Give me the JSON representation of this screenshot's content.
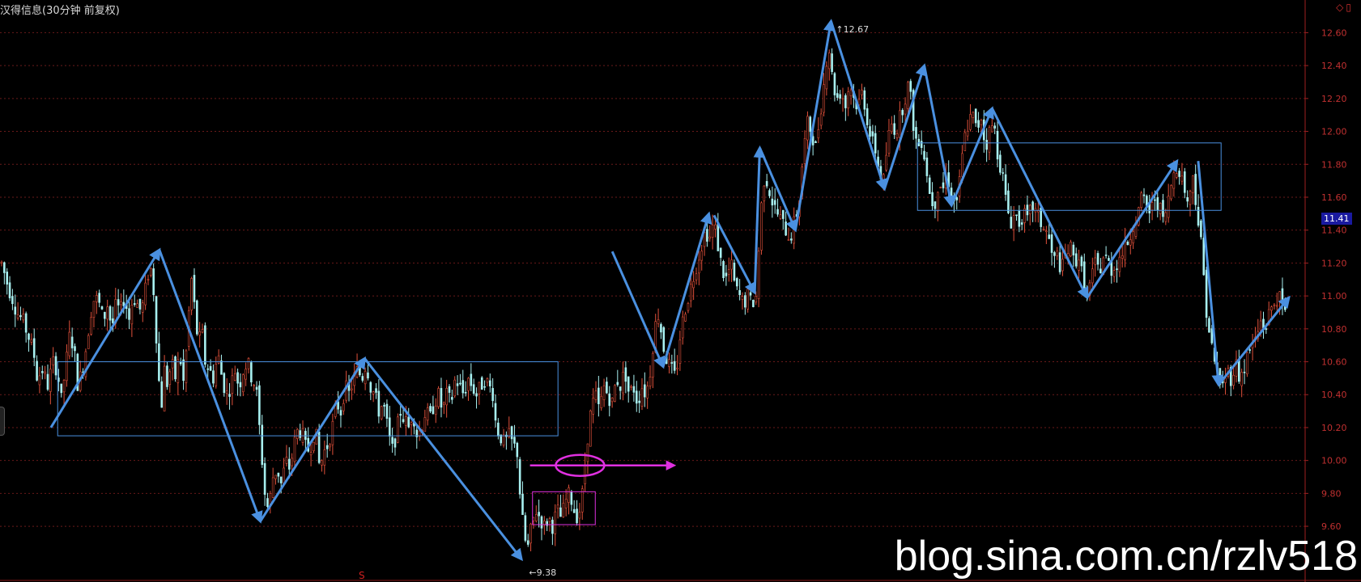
{
  "window": {
    "title": "汉得信息(30分钟 前复权)"
  },
  "price_tag": {
    "value": "11.41"
  },
  "watermark": "blog.sina.com.cn/rzlv518",
  "colors": {
    "background": "#000000",
    "grid": "#6a1a1a",
    "axis_text": "#c03030",
    "candle_up": "#e0503a",
    "candle_down": "#a8f0f0",
    "annotation_blue": "#4a90e0",
    "annotation_magenta": "#e030e0"
  },
  "icons": [
    "diamond-icon",
    "window-icon"
  ],
  "chart_data": {
    "type": "candlestick",
    "title": "汉得信息(30分钟 前复权)",
    "ylim": [
      9.34,
      12.72
    ],
    "yticks": [
      "12.60",
      "12.40",
      "12.20",
      "12.00",
      "11.80",
      "11.60",
      "11.40",
      "11.20",
      "11.00",
      "10.80",
      "10.60",
      "10.40",
      "10.20",
      "10.00",
      "9.80",
      "9.60"
    ],
    "max_label": "12.67",
    "min_label": "9.38",
    "current_price": 11.41,
    "close_path": [
      [
        0,
        11.2
      ],
      [
        8,
        11.05
      ],
      [
        12,
        11.0
      ],
      [
        18,
        10.9
      ],
      [
        25,
        10.85
      ],
      [
        32,
        10.75
      ],
      [
        38,
        10.65
      ],
      [
        42,
        10.5
      ],
      [
        48,
        10.55
      ],
      [
        55,
        10.45
      ],
      [
        60,
        10.6
      ],
      [
        66,
        10.55
      ],
      [
        70,
        10.35
      ],
      [
        75,
        10.55
      ],
      [
        80,
        10.75
      ],
      [
        85,
        10.7
      ],
      [
        90,
        10.45
      ],
      [
        95,
        10.55
      ],
      [
        100,
        10.7
      ],
      [
        105,
        10.9
      ],
      [
        110,
        11.0
      ],
      [
        115,
        10.95
      ],
      [
        120,
        10.85
      ],
      [
        125,
        10.95
      ],
      [
        130,
        10.8
      ],
      [
        135,
        10.95
      ],
      [
        140,
        10.9
      ],
      [
        145,
        11.0
      ],
      [
        150,
        10.85
      ],
      [
        155,
        11.0
      ],
      [
        160,
        10.95
      ],
      [
        165,
        10.9
      ],
      [
        170,
        11.05
      ],
      [
        175,
        11.2
      ],
      [
        180,
        11.0
      ],
      [
        184,
        10.6
      ],
      [
        188,
        10.3
      ],
      [
        192,
        10.55
      ],
      [
        196,
        10.45
      ],
      [
        200,
        10.6
      ],
      [
        205,
        10.5
      ],
      [
        210,
        10.65
      ],
      [
        215,
        10.45
      ],
      [
        220,
        10.85
      ],
      [
        224,
        11.1
      ],
      [
        228,
        10.9
      ],
      [
        232,
        10.7
      ],
      [
        236,
        10.8
      ],
      [
        240,
        10.6
      ],
      [
        245,
        10.55
      ],
      [
        250,
        10.5
      ],
      [
        255,
        10.65
      ],
      [
        260,
        10.5
      ],
      [
        265,
        10.4
      ],
      [
        270,
        10.45
      ],
      [
        275,
        10.55
      ],
      [
        280,
        10.45
      ],
      [
        285,
        10.55
      ],
      [
        290,
        10.6
      ],
      [
        295,
        10.5
      ],
      [
        300,
        10.45
      ],
      [
        304,
        10.2
      ],
      [
        308,
        9.95
      ],
      [
        312,
        9.7
      ],
      [
        316,
        9.75
      ],
      [
        320,
        9.9
      ],
      [
        325,
        9.95
      ],
      [
        330,
        9.85
      ],
      [
        335,
        10.0
      ],
      [
        340,
        9.95
      ],
      [
        345,
        10.1
      ],
      [
        350,
        10.2
      ],
      [
        355,
        10.15
      ],
      [
        360,
        10.05
      ],
      [
        365,
        10.1
      ],
      [
        370,
        10.2
      ],
      [
        375,
        9.95
      ],
      [
        380,
        10.05
      ],
      [
        385,
        10.1
      ],
      [
        390,
        10.2
      ],
      [
        395,
        10.35
      ],
      [
        400,
        10.3
      ],
      [
        405,
        10.45
      ],
      [
        410,
        10.4
      ],
      [
        415,
        10.5
      ],
      [
        420,
        10.55
      ],
      [
        425,
        10.5
      ],
      [
        430,
        10.6
      ],
      [
        435,
        10.45
      ],
      [
        440,
        10.4
      ],
      [
        445,
        10.3
      ],
      [
        450,
        10.35
      ],
      [
        455,
        10.2
      ],
      [
        460,
        10.05
      ],
      [
        465,
        10.15
      ],
      [
        470,
        10.3
      ],
      [
        475,
        10.25
      ],
      [
        480,
        10.2
      ],
      [
        485,
        10.3
      ],
      [
        490,
        10.15
      ],
      [
        495,
        10.2
      ],
      [
        500,
        10.3
      ],
      [
        505,
        10.25
      ],
      [
        510,
        10.35
      ],
      [
        515,
        10.4
      ],
      [
        520,
        10.3
      ],
      [
        525,
        10.4
      ],
      [
        530,
        10.35
      ],
      [
        535,
        10.5
      ],
      [
        540,
        10.45
      ],
      [
        545,
        10.4
      ],
      [
        550,
        10.5
      ],
      [
        555,
        10.45
      ],
      [
        560,
        10.4
      ],
      [
        565,
        10.45
      ],
      [
        570,
        10.5
      ],
      [
        575,
        10.45
      ],
      [
        580,
        10.4
      ],
      [
        583,
        10.2
      ],
      [
        588,
        10.15
      ],
      [
        593,
        10.1
      ],
      [
        598,
        10.15
      ],
      [
        603,
        10.1
      ],
      [
        608,
        10.05
      ],
      [
        612,
        9.75
      ],
      [
        616,
        9.55
      ],
      [
        620,
        9.45
      ],
      [
        625,
        9.6
      ],
      [
        630,
        9.7
      ],
      [
        635,
        9.65
      ],
      [
        640,
        9.6
      ],
      [
        645,
        9.65
      ],
      [
        650,
        9.6
      ],
      [
        655,
        9.7
      ],
      [
        660,
        9.65
      ],
      [
        665,
        9.75
      ],
      [
        670,
        9.8
      ],
      [
        675,
        9.7
      ],
      [
        680,
        9.65
      ],
      [
        685,
        9.8
      ],
      [
        690,
        10.1
      ],
      [
        695,
        10.3
      ],
      [
        700,
        10.4
      ],
      [
        705,
        10.3
      ],
      [
        710,
        10.45
      ],
      [
        715,
        10.4
      ],
      [
        720,
        10.35
      ],
      [
        725,
        10.5
      ],
      [
        730,
        10.45
      ],
      [
        735,
        10.55
      ],
      [
        740,
        10.4
      ],
      [
        745,
        10.45
      ],
      [
        750,
        10.35
      ],
      [
        755,
        10.45
      ],
      [
        760,
        10.4
      ],
      [
        765,
        10.55
      ],
      [
        770,
        10.8
      ],
      [
        775,
        10.9
      ],
      [
        780,
        10.7
      ],
      [
        785,
        10.6
      ],
      [
        790,
        10.55
      ],
      [
        795,
        10.5
      ],
      [
        800,
        10.75
      ],
      [
        805,
        10.9
      ],
      [
        810,
        11.0
      ],
      [
        815,
        11.1
      ],
      [
        820,
        11.2
      ],
      [
        825,
        11.3
      ],
      [
        830,
        11.4
      ],
      [
        835,
        11.35
      ],
      [
        840,
        11.45
      ],
      [
        845,
        11.3
      ],
      [
        850,
        11.15
      ],
      [
        855,
        11.1
      ],
      [
        860,
        11.2
      ],
      [
        865,
        11.05
      ],
      [
        870,
        11.0
      ],
      [
        875,
        10.95
      ],
      [
        880,
        11.0
      ],
      [
        885,
        10.95
      ],
      [
        890,
        11.0
      ],
      [
        895,
        11.5
      ],
      [
        900,
        11.75
      ],
      [
        905,
        11.65
      ],
      [
        910,
        11.55
      ],
      [
        915,
        11.5
      ],
      [
        920,
        11.45
      ],
      [
        925,
        11.4
      ],
      [
        930,
        11.35
      ],
      [
        935,
        11.45
      ],
      [
        940,
        11.55
      ],
      [
        945,
        11.85
      ],
      [
        950,
        12.05
      ],
      [
        955,
        12.0
      ],
      [
        960,
        11.9
      ],
      [
        965,
        12.1
      ],
      [
        970,
        12.3
      ],
      [
        975,
        12.55
      ],
      [
        980,
        12.3
      ],
      [
        985,
        12.2
      ],
      [
        990,
        12.25
      ],
      [
        995,
        12.15
      ],
      [
        1000,
        12.3
      ],
      [
        1005,
        12.2
      ],
      [
        1010,
        12.15
      ],
      [
        1015,
        12.25
      ],
      [
        1020,
        12.1
      ],
      [
        1025,
        11.95
      ],
      [
        1030,
        11.9
      ],
      [
        1035,
        11.75
      ],
      [
        1040,
        11.7
      ],
      [
        1045,
        11.95
      ],
      [
        1050,
        12.05
      ],
      [
        1055,
        12.0
      ],
      [
        1060,
        12.1
      ],
      [
        1065,
        12.2
      ],
      [
        1070,
        12.3
      ],
      [
        1075,
        12.05
      ],
      [
        1080,
        11.9
      ],
      [
        1085,
        11.95
      ],
      [
        1090,
        11.8
      ],
      [
        1095,
        11.6
      ],
      [
        1100,
        11.55
      ],
      [
        1105,
        11.7
      ],
      [
        1110,
        11.65
      ],
      [
        1115,
        11.75
      ],
      [
        1120,
        11.6
      ],
      [
        1125,
        11.55
      ],
      [
        1130,
        11.7
      ],
      [
        1135,
        11.95
      ],
      [
        1140,
        12.05
      ],
      [
        1145,
        12.1
      ],
      [
        1150,
        12.0
      ],
      [
        1155,
        12.1
      ],
      [
        1160,
        11.9
      ],
      [
        1165,
        12.0
      ],
      [
        1170,
        12.05
      ],
      [
        1175,
        11.85
      ],
      [
        1180,
        11.75
      ],
      [
        1185,
        11.55
      ],
      [
        1190,
        11.45
      ],
      [
        1195,
        11.5
      ],
      [
        1200,
        11.45
      ],
      [
        1205,
        11.5
      ],
      [
        1210,
        11.45
      ],
      [
        1215,
        11.55
      ],
      [
        1220,
        11.5
      ],
      [
        1225,
        11.45
      ],
      [
        1230,
        11.4
      ],
      [
        1235,
        11.35
      ],
      [
        1240,
        11.2
      ],
      [
        1245,
        11.25
      ],
      [
        1250,
        11.15
      ],
      [
        1255,
        11.25
      ],
      [
        1260,
        11.3
      ],
      [
        1265,
        11.2
      ],
      [
        1270,
        11.25
      ],
      [
        1275,
        11.1
      ],
      [
        1280,
        11.0
      ],
      [
        1285,
        11.1
      ],
      [
        1290,
        11.2
      ],
      [
        1295,
        11.15
      ],
      [
        1300,
        11.25
      ],
      [
        1305,
        11.2
      ],
      [
        1310,
        11.15
      ],
      [
        1315,
        11.2
      ],
      [
        1320,
        11.25
      ],
      [
        1325,
        11.3
      ],
      [
        1330,
        11.35
      ],
      [
        1335,
        11.45
      ],
      [
        1340,
        11.5
      ],
      [
        1345,
        11.6
      ],
      [
        1350,
        11.55
      ],
      [
        1355,
        11.5
      ],
      [
        1360,
        11.6
      ],
      [
        1365,
        11.55
      ],
      [
        1370,
        11.45
      ],
      [
        1375,
        11.55
      ],
      [
        1380,
        11.7
      ],
      [
        1385,
        11.8
      ],
      [
        1390,
        11.75
      ],
      [
        1395,
        11.65
      ],
      [
        1400,
        11.55
      ],
      [
        1405,
        11.75
      ],
      [
        1410,
        11.5
      ],
      [
        1415,
        11.3
      ],
      [
        1420,
        10.95
      ],
      [
        1425,
        10.75
      ],
      [
        1430,
        10.6
      ],
      [
        1435,
        10.5
      ],
      [
        1440,
        10.45
      ],
      [
        1445,
        10.55
      ],
      [
        1450,
        10.5
      ],
      [
        1455,
        10.6
      ],
      [
        1460,
        10.5
      ],
      [
        1465,
        10.55
      ],
      [
        1470,
        10.65
      ],
      [
        1475,
        10.7
      ],
      [
        1480,
        10.75
      ],
      [
        1485,
        10.85
      ],
      [
        1490,
        10.8
      ],
      [
        1495,
        10.9
      ],
      [
        1500,
        10.95
      ],
      [
        1505,
        11.0
      ],
      [
        1510,
        10.95
      ],
      [
        1515,
        10.85
      ]
    ],
    "annotations": {
      "arrows": [
        [
          [
            60,
            10.2
          ],
          [
            188,
            11.28
          ]
        ],
        [
          [
            188,
            11.28
          ],
          [
            307,
            9.63
          ]
        ],
        [
          [
            307,
            9.63
          ],
          [
            430,
            10.62
          ]
        ],
        [
          [
            430,
            10.62
          ],
          [
            615,
            9.4
          ]
        ],
        [
          [
            722,
            11.27
          ],
          [
            782,
            10.57
          ]
        ],
        [
          [
            782,
            10.57
          ],
          [
            836,
            11.5
          ]
        ],
        [
          [
            842,
            11.49
          ],
          [
            890,
            11.02
          ]
        ],
        [
          [
            890,
            11.02
          ],
          [
            896,
            11.9
          ]
        ],
        [
          [
            896,
            11.9
          ],
          [
            938,
            11.4
          ]
        ],
        [
          [
            938,
            11.4
          ],
          [
            980,
            12.67
          ]
        ],
        [
          [
            980,
            12.67
          ],
          [
            1043,
            11.65
          ]
        ],
        [
          [
            1043,
            11.65
          ],
          [
            1090,
            12.4
          ]
        ],
        [
          [
            1090,
            12.4
          ],
          [
            1122,
            11.55
          ]
        ],
        [
          [
            1122,
            11.55
          ],
          [
            1170,
            12.14
          ]
        ],
        [
          [
            1170,
            12.14
          ],
          [
            1282,
            10.99
          ]
        ],
        [
          [
            1282,
            10.99
          ],
          [
            1388,
            11.82
          ]
        ],
        [
          [
            1413,
            11.82
          ],
          [
            1437,
            10.46
          ]
        ],
        [
          [
            1437,
            10.46
          ],
          [
            1520,
            10.99
          ]
        ]
      ],
      "boxes": [
        {
          "x": [
            68,
            658
          ],
          "y": [
            10.15,
            10.6
          ]
        },
        {
          "x": [
            1082,
            1440
          ],
          "y": [
            11.52,
            11.93
          ]
        },
        {
          "x": [
            628,
            702
          ],
          "y": [
            9.61,
            9.81
          ]
        }
      ],
      "ellipse": {
        "x": 684,
        "y": 9.97
      },
      "level_line": {
        "x": [
          625,
          795
        ],
        "y": 9.97
      }
    }
  }
}
